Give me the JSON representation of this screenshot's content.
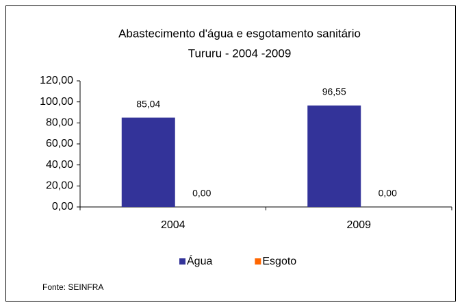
{
  "chart_data": {
    "type": "bar",
    "title": "Abastecimento d'água e esgotamento sanitário",
    "subtitle": "Tururu   - 2004 -2009",
    "categories": [
      "2004",
      "2009"
    ],
    "series": [
      {
        "name": "Água",
        "color": "#333399",
        "values": [
          85.04,
          96.55
        ],
        "value_labels": [
          "85,04",
          "96,55"
        ]
      },
      {
        "name": "Esgoto",
        "color": "#ff6600",
        "values": [
          0,
          0
        ],
        "value_labels": [
          "0,00",
          "0,00"
        ]
      }
    ],
    "ylim": [
      0,
      120
    ],
    "yticks": [
      {
        "value": 0,
        "label": "0,00"
      },
      {
        "value": 20,
        "label": "20,00"
      },
      {
        "value": 40,
        "label": "40,00"
      },
      {
        "value": 60,
        "label": "60,00"
      },
      {
        "value": 80,
        "label": "80,00"
      },
      {
        "value": 100,
        "label": "100,00"
      },
      {
        "value": 120,
        "label": "120,00"
      }
    ],
    "grid": false,
    "legend": "bottom",
    "source": "Fonte: SEINFRA"
  }
}
